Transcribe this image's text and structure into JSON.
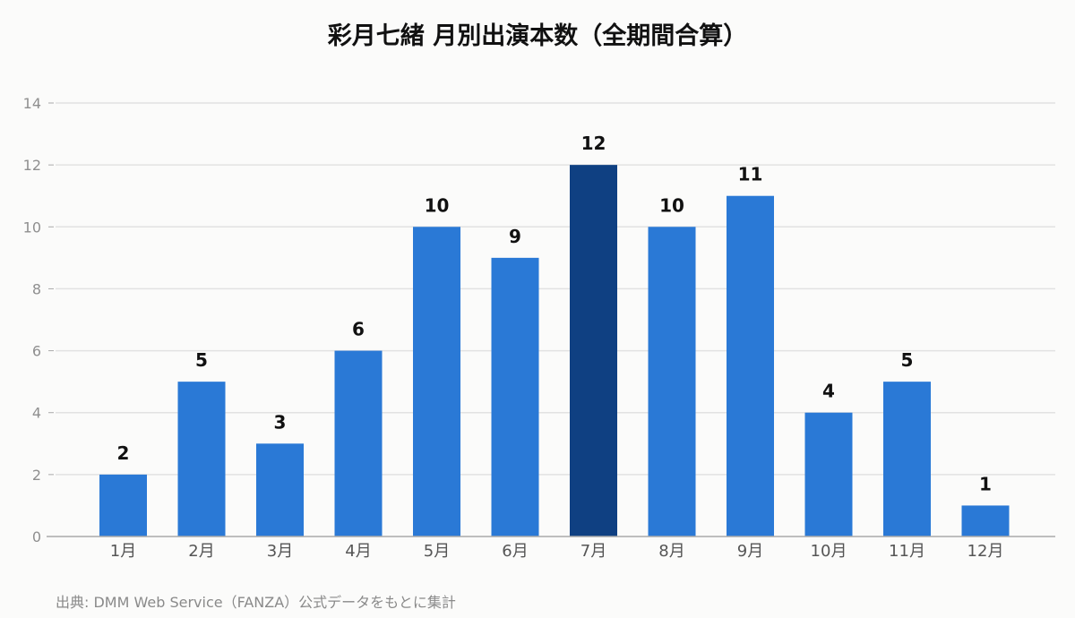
{
  "title": "彩月七緒 月別出演本数（全期間合算）",
  "source_note": "出典: DMM Web Service（FANZA）公式データをもとに集計",
  "colors": {
    "bar": "#2a79d6",
    "bar_highlight": "#0f4082",
    "grid": "#e2e2e2",
    "axis": "#aaaaaa",
    "tick_label": "#8f8f8f",
    "category_label": "#555555",
    "value_label": "#111111"
  },
  "chart_data": {
    "type": "bar",
    "title": "彩月七緒 月別出演本数（全期間合算）",
    "xlabel": "",
    "ylabel": "",
    "categories": [
      "1月",
      "2月",
      "3月",
      "4月",
      "5月",
      "6月",
      "7月",
      "8月",
      "9月",
      "10月",
      "11月",
      "12月"
    ],
    "values": [
      2,
      5,
      3,
      6,
      10,
      9,
      12,
      10,
      11,
      4,
      5,
      1
    ],
    "highlight_index": 6,
    "ylim": [
      0,
      14
    ],
    "yticks": [
      0,
      2,
      4,
      6,
      8,
      10,
      12,
      14
    ],
    "grid": true,
    "legend": false,
    "data_labels": true
  }
}
